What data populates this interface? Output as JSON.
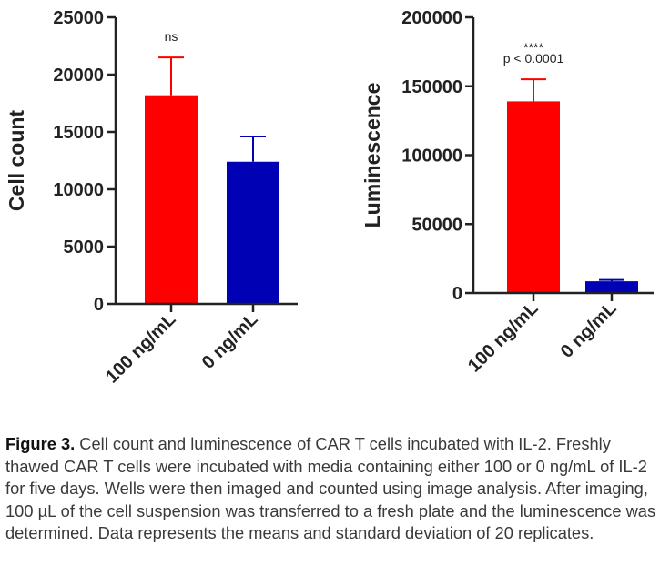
{
  "chart_data": [
    {
      "type": "bar",
      "title": "",
      "xlabel": "",
      "ylabel": "Cell count",
      "ylim": [
        0,
        25000
      ],
      "yticks": [
        0,
        5000,
        10000,
        15000,
        20000,
        25000
      ],
      "categories": [
        "100 ng/mL",
        "0 ng/mL"
      ],
      "values": [
        18200,
        12400
      ],
      "errors": [
        3300,
        2200
      ],
      "colors": [
        "#ff0000",
        "#0000b4"
      ],
      "annotation": [
        "ns"
      ]
    },
    {
      "type": "bar",
      "title": "",
      "xlabel": "",
      "ylabel": "Luminescence",
      "ylim": [
        0,
        200000
      ],
      "yticks": [
        0,
        50000,
        100000,
        150000,
        200000
      ],
      "categories": [
        "100 ng/mL",
        "0 ng/mL"
      ],
      "values": [
        139000,
        8500
      ],
      "errors": [
        16000,
        1000
      ],
      "colors": [
        "#ff0000",
        "#0000b4"
      ],
      "annotation": [
        "****",
        "p < 0.0001"
      ]
    }
  ],
  "caption": {
    "lead": "Figure 3.",
    "text": " Cell count and luminescence of CAR T cells incubated with IL-2. Freshly thawed CAR T cells were incubated with media containing either 100 or 0 ng/mL of IL-2 for five days. Wells were then imaged and counted using image analysis. After imaging, 100 µL of the cell suspension was transferred to a fresh plate and the luminescence was determined. Data represents the means and standard deviation of 20 replicates."
  }
}
